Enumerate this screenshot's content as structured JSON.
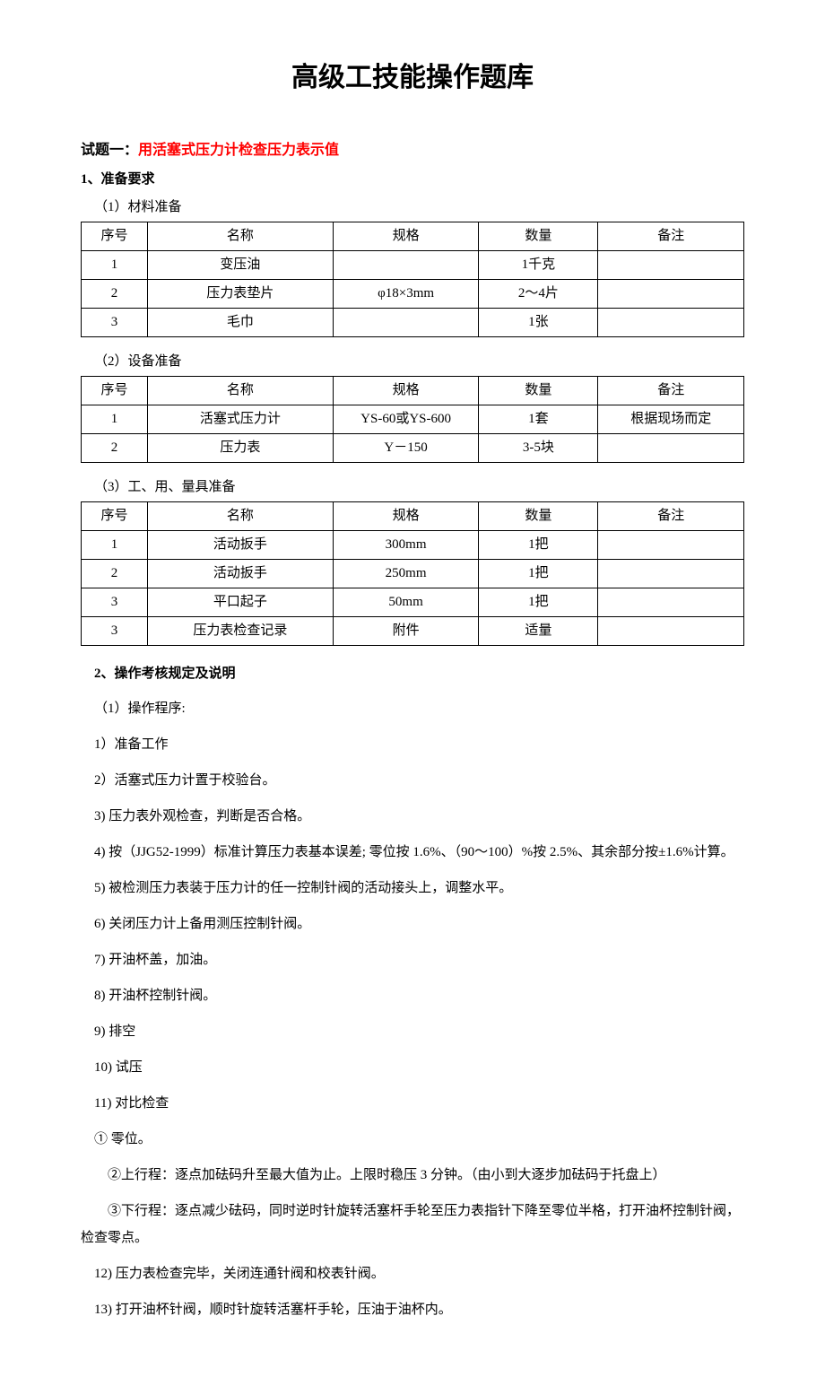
{
  "page_title": "高级工技能操作题库",
  "section1": {
    "label": "试题一：",
    "title": "用活塞式压力计检查压力表示值"
  },
  "prep": {
    "heading": "1、准备要求",
    "sub1": "（1）材料准备",
    "sub2": "（2）设备准备",
    "sub3": "（3）工、用、量具准备"
  },
  "table_headers": {
    "seq": "序号",
    "name": "名称",
    "spec": "规格",
    "qty": "数量",
    "note": "备注"
  },
  "table1": {
    "rows": [
      {
        "seq": "1",
        "name": "变压油",
        "spec": "",
        "qty": "1千克",
        "note": ""
      },
      {
        "seq": "2",
        "name": "压力表垫片",
        "spec": "φ18×3mm",
        "qty": "2～4片",
        "note": ""
      },
      {
        "seq": "3",
        "name": "毛巾",
        "spec": "",
        "qty": "1张",
        "note": ""
      }
    ]
  },
  "table2": {
    "rows": [
      {
        "seq": "1",
        "name": "活塞式压力计",
        "spec": "YS-60或YS-600",
        "qty": "1套",
        "note": "根据现场而定"
      },
      {
        "seq": "2",
        "name": "压力表",
        "spec": "Y－150",
        "qty": "3-5块",
        "note": ""
      }
    ]
  },
  "table3": {
    "rows": [
      {
        "seq": "1",
        "name": "活动扳手",
        "spec": "300mm",
        "qty": "1把",
        "note": ""
      },
      {
        "seq": "2",
        "name": "活动扳手",
        "spec": "250mm",
        "qty": "1把",
        "note": ""
      },
      {
        "seq": "3",
        "name": "平口起子",
        "spec": "50mm",
        "qty": "1把",
        "note": ""
      },
      {
        "seq": "3",
        "name": "压力表检查记录",
        "spec": "附件",
        "qty": "适量",
        "note": ""
      }
    ]
  },
  "procedure": {
    "heading": "2、操作考核规定及说明",
    "sub": "（1）操作程序:",
    "steps": {
      "s1": "1）准备工作",
      "s2": "2）活塞式压力计置于校验台。",
      "s3": "3) 压力表外观检查，判断是否合格。",
      "s4": "4) 按（JJG52-1999）标准计算压力表基本误差; 零位按 1.6%、（90～100）%按 2.5%、其余部分按±1.6%计算。",
      "s5": "5) 被检测压力表装于压力计的任一控制针阀的活动接头上，调整水平。",
      "s6": "6) 关闭压力计上备用测压控制针阀。",
      "s7": "7) 开油杯盖，加油。",
      "s8": "8) 开油杯控制针阀。",
      "s9": "9) 排空",
      "s10": "10) 试压",
      "s11": "11) 对比检查",
      "c1": "① 零位。",
      "c2": "②上行程：逐点加砝码升至最大值为止。上限时稳压 3 分钟。（由小到大逐步加砝码于托盘上）",
      "c3": "③下行程：逐点减少砝码，同时逆时针旋转活塞杆手轮至压力表指针下降至零位半格，打开油杯控制针阀，检查零点。",
      "s12": "12) 压力表检查完毕，关闭连通针阀和校表针阀。",
      "s13": "13) 打开油杯针阀，顺时针旋转活塞杆手轮，压油于油杯内。"
    }
  }
}
